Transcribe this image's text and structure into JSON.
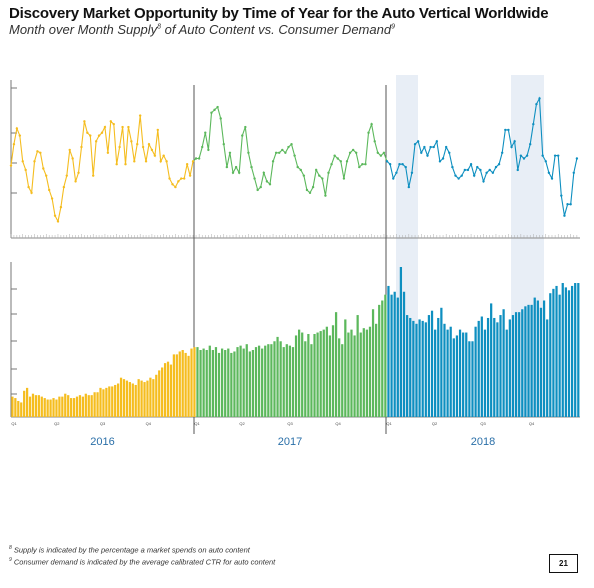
{
  "header": {
    "title": "Discovery Market Opportunity by Time of Year for the Auto Vertical Worldwide",
    "subtitle_a": "Month over Month Supply",
    "sup_a": "8",
    "subtitle_b": " of Auto Content vs. Consumer Demand",
    "sup_b": "9"
  },
  "footnotes": [
    {
      "num": "8",
      "text": "Supply is indicated by the percentage a market spends on auto content"
    },
    {
      "num": "9",
      "text": "Consumer demand is indicated by the average calibrated CTR for auto content"
    }
  ],
  "page_number": "21",
  "colors": {
    "y2016": "#f5bd1f",
    "y2017": "#5cb85c",
    "y2018": "#0e8fc0",
    "highlight": "#e8eef6"
  },
  "chart_data": {
    "type": "line+bar",
    "years": [
      "2016",
      "2017",
      "2018"
    ],
    "quarter_labels": [
      "Q1",
      "Q2",
      "Q3",
      "Q4"
    ],
    "top_line_demand": [
      45,
      60,
      71,
      66,
      48,
      42,
      30,
      26,
      48,
      55,
      54,
      43,
      38,
      28,
      22,
      10,
      6,
      16,
      30,
      38,
      56,
      50,
      34,
      40,
      58,
      76,
      68,
      66,
      38,
      62,
      66,
      68,
      72,
      54,
      76,
      74,
      46,
      58,
      72,
      46,
      72,
      62,
      48,
      60,
      80,
      58,
      48,
      60,
      56,
      52,
      70,
      48,
      52,
      48,
      36,
      32,
      30,
      34,
      36,
      36,
      46,
      38,
      48,
      50,
      50,
      58,
      68,
      56,
      82,
      84,
      86,
      78,
      60,
      44,
      54,
      40,
      44,
      40,
      66,
      72,
      54,
      44,
      36,
      28,
      30,
      40,
      34,
      32,
      48,
      54,
      54,
      56,
      54,
      58,
      60,
      52,
      44,
      42,
      38,
      28,
      26,
      30,
      42,
      38,
      36,
      24,
      40,
      46,
      52,
      50,
      48,
      36,
      48,
      54,
      56,
      54,
      44,
      46,
      46,
      68,
      74,
      62,
      54,
      52,
      54,
      48,
      46,
      36,
      40,
      46,
      46,
      44,
      30,
      40,
      60,
      62,
      54,
      58,
      52,
      58,
      58,
      62,
      48,
      50,
      58,
      54,
      44,
      38,
      36,
      38,
      42,
      42,
      46,
      38,
      44,
      42,
      34,
      40,
      42,
      40,
      44,
      46,
      54,
      70,
      70,
      58,
      62,
      42,
      52,
      50,
      52,
      60,
      74,
      88,
      92,
      52,
      48,
      40,
      36,
      52,
      52,
      24,
      10,
      18,
      18,
      40,
      50
    ],
    "bottom_bar_supply": [
      14,
      13,
      11,
      10,
      18,
      20,
      14,
      16,
      15,
      15,
      14,
      13,
      12,
      12,
      13,
      12,
      14,
      14,
      16,
      15,
      13,
      13,
      14,
      15,
      14,
      16,
      15,
      15,
      17,
      17,
      20,
      19,
      20,
      21,
      21,
      22,
      23,
      27,
      26,
      25,
      24,
      23,
      22,
      26,
      25,
      24,
      25,
      27,
      26,
      29,
      32,
      34,
      37,
      38,
      36,
      43,
      43,
      45,
      46,
      44,
      42,
      47,
      48,
      48,
      46,
      47,
      46,
      49,
      46,
      48,
      44,
      47,
      46,
      47,
      44,
      45,
      48,
      49,
      47,
      50,
      45,
      46,
      48,
      49,
      47,
      49,
      50,
      50,
      52,
      55,
      52,
      48,
      50,
      49,
      48,
      56,
      60,
      58,
      52,
      57,
      50,
      57,
      58,
      59,
      60,
      62,
      56,
      63,
      72,
      54,
      50,
      67,
      58,
      60,
      56,
      70,
      58,
      61,
      60,
      62,
      74,
      64,
      77,
      80,
      84,
      90,
      84,
      86,
      82,
      103,
      86,
      70,
      68,
      66,
      64,
      67,
      66,
      65,
      70,
      73,
      60,
      68,
      75,
      64,
      60,
      62,
      54,
      56,
      60,
      58,
      58,
      52,
      52,
      62,
      66,
      69,
      60,
      68,
      78,
      68,
      65,
      70,
      74,
      60,
      67,
      70,
      72,
      72,
      74,
      76,
      77,
      77,
      82,
      80,
      75,
      80,
      67,
      85,
      88,
      90,
      84,
      92,
      89,
      87,
      90,
      92,
      92
    ],
    "quarter_divisions_per_year": 4
  }
}
